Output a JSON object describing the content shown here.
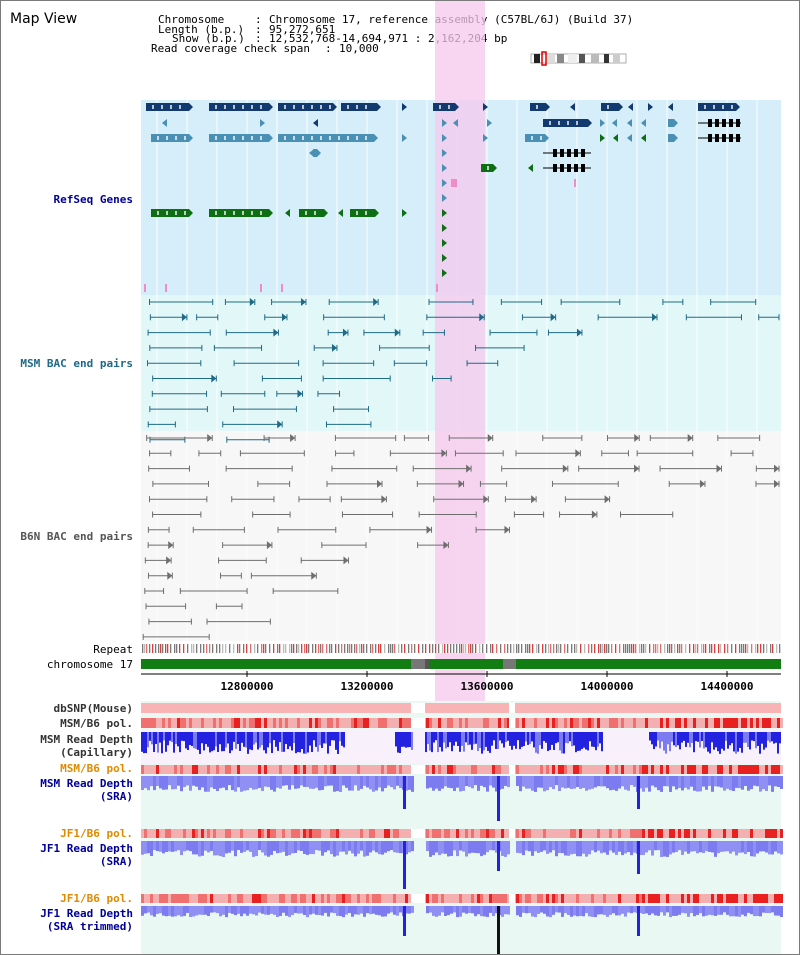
{
  "app_title": "Map View",
  "info": {
    "chromosome_key": "Chromosome",
    "chromosome_value": "Chromosome 17, reference assembly (C57BL/6J) (Build 37)",
    "length_key": "Length (b.p.)",
    "length_value": "95,272,651",
    "show_key": "Show (b.p.)",
    "show_value": "12,532,768-14,694,971 : 2,162,204 bp",
    "coverage_key": "Read coverage check span",
    "coverage_value": "10,000"
  },
  "tracks": {
    "refseq": "RefSeq Genes",
    "msm_bac": "MSM BAC end pairs",
    "b6n_bac": "B6N BAC end pairs",
    "repeat": "Repeat",
    "chromosome": "chromosome 17",
    "dbsnp": "dbSNP(Mouse)",
    "msm_b6_pol_1": "MSM/B6 pol.",
    "msm_depth_cap_1": "MSM Read Depth",
    "msm_depth_cap_2": "(Capillary)",
    "msm_b6_pol_2": "MSM/B6 pol.",
    "msm_depth_sra_1": "MSM Read Depth",
    "msm_depth_sra_2": "(SRA)",
    "jf1_b6_pol_1": "JF1/B6 pol.",
    "jf1_depth_sra_1": "JF1 Read Depth",
    "jf1_depth_sra_2": "(SRA)",
    "jf1_b6_pol_2": "JF1/B6 pol.",
    "jf1_depth_trim_1": "JF1 Read Depth",
    "jf1_depth_trim_2": "(SRA trimmed)"
  },
  "axis": {
    "ticks": [
      "12800000",
      "13200000",
      "13600000",
      "14000000",
      "14400000"
    ]
  },
  "colors": {
    "refseq_bg": "#d6eefa",
    "msm_bg": "#e2f8f8",
    "b6n_bg": "#f5f5f5",
    "highlight": "#f5c8ee",
    "refseq_navy": "#123a6e",
    "refseq_steel": "#4a8fb4",
    "refseq_green": "#0e6e14",
    "refseq_pink": "#f08cc8",
    "msm_line": "#1f6a86",
    "b6n_line": "#6e6e6e",
    "depth_blue": "#2222e0",
    "depth_light": "#7c7cf0",
    "pol_light": "#f8a8a8",
    "pol_red": "#e82020",
    "chrom_green": "#127d12",
    "label_blue": "#000099",
    "label_orange": "#e08a00"
  }
}
